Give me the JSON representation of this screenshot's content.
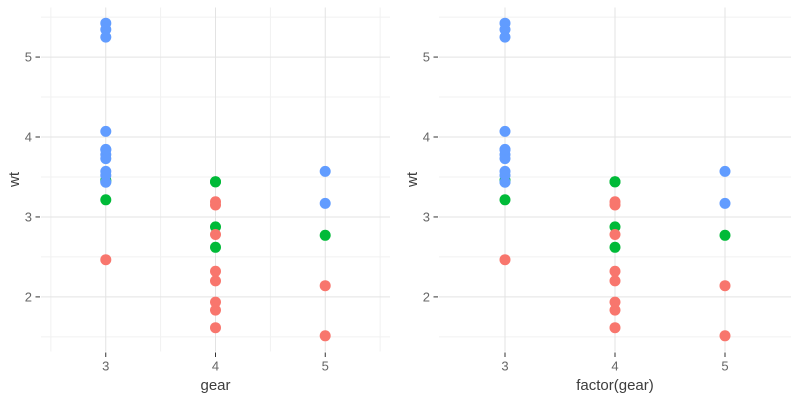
{
  "figure": {
    "background": "#FFFFFF",
    "grid_major_color": "#E3E3E3",
    "grid_minor_color": "#F1F1F1",
    "tick_color": "#333333",
    "tick_label_color": "#666666",
    "axis_title_color": "#3D3D3D",
    "point_colors_by_cyl": {
      "4": "#F8766D",
      "6": "#00BA38",
      "8": "#619CFF"
    }
  },
  "chart_data": [
    {
      "type": "scatter",
      "title": "",
      "xlabel": "gear",
      "ylabel": "wt",
      "legend": "none",
      "grid": true,
      "x_axis": {
        "scale": "continuous",
        "lim": [
          2.41,
          5.59
        ],
        "ticks": [
          {
            "pos": 3,
            "label": "3"
          },
          {
            "pos": 4,
            "label": "4"
          },
          {
            "pos": 5,
            "label": "5"
          }
        ],
        "minor": [
          2.5,
          3.5,
          4.5,
          5.5
        ]
      },
      "y_axis": {
        "lim": [
          1.317,
          5.62
        ],
        "ticks": [
          {
            "pos": 2,
            "label": "2"
          },
          {
            "pos": 3,
            "label": "3"
          },
          {
            "pos": 4,
            "label": "4"
          },
          {
            "pos": 5,
            "label": "5"
          }
        ],
        "minor": [
          1.5,
          2.5,
          3.5,
          4.5,
          5.5
        ]
      },
      "group_variable": "cyl",
      "colors": {
        "4": "#F8766D",
        "6": "#00BA38",
        "8": "#619CFF"
      },
      "points_format": [
        "gear",
        "wt",
        "cyl"
      ],
      "points": [
        [
          4,
          2.62,
          6
        ],
        [
          4,
          2.875,
          6
        ],
        [
          4,
          2.32,
          4
        ],
        [
          3,
          3.215,
          6
        ],
        [
          3,
          3.44,
          8
        ],
        [
          3,
          3.46,
          6
        ],
        [
          3,
          3.57,
          8
        ],
        [
          4,
          3.19,
          4
        ],
        [
          4,
          3.15,
          4
        ],
        [
          4,
          3.44,
          6
        ],
        [
          4,
          3.44,
          6
        ],
        [
          3,
          4.07,
          8
        ],
        [
          3,
          3.73,
          8
        ],
        [
          3,
          3.78,
          8
        ],
        [
          3,
          5.25,
          8
        ],
        [
          3,
          5.424,
          8
        ],
        [
          3,
          5.345,
          8
        ],
        [
          4,
          2.2,
          4
        ],
        [
          4,
          1.615,
          4
        ],
        [
          4,
          1.835,
          4
        ],
        [
          3,
          2.465,
          4
        ],
        [
          3,
          3.52,
          8
        ],
        [
          3,
          3.435,
          8
        ],
        [
          3,
          3.84,
          8
        ],
        [
          3,
          3.845,
          8
        ],
        [
          4,
          1.935,
          4
        ],
        [
          5,
          2.14,
          4
        ],
        [
          5,
          1.513,
          4
        ],
        [
          5,
          3.17,
          8
        ],
        [
          5,
          2.77,
          6
        ],
        [
          5,
          3.57,
          8
        ],
        [
          4,
          2.78,
          4
        ]
      ]
    },
    {
      "type": "scatter",
      "title": "",
      "xlabel": "factor(gear)",
      "ylabel": "wt",
      "legend": "none",
      "grid": true,
      "x_axis": {
        "scale": "discrete",
        "lim": [
          0.4,
          3.6
        ],
        "level_pos": {
          "3": 1,
          "4": 2,
          "5": 3
        },
        "ticks": [
          {
            "pos": 1,
            "label": "3"
          },
          {
            "pos": 2,
            "label": "4"
          },
          {
            "pos": 3,
            "label": "5"
          }
        ],
        "minor": []
      },
      "y_axis": {
        "lim": [
          1.317,
          5.62
        ],
        "ticks": [
          {
            "pos": 2,
            "label": "2"
          },
          {
            "pos": 3,
            "label": "3"
          },
          {
            "pos": 4,
            "label": "4"
          },
          {
            "pos": 5,
            "label": "5"
          }
        ],
        "minor": [
          1.5,
          2.5,
          3.5,
          4.5,
          5.5
        ]
      },
      "group_variable": "cyl",
      "colors": {
        "4": "#F8766D",
        "6": "#00BA38",
        "8": "#619CFF"
      },
      "points_format": [
        "gear",
        "wt",
        "cyl"
      ],
      "points": [
        [
          4,
          2.62,
          6
        ],
        [
          4,
          2.875,
          6
        ],
        [
          4,
          2.32,
          4
        ],
        [
          3,
          3.215,
          6
        ],
        [
          3,
          3.44,
          8
        ],
        [
          3,
          3.46,
          6
        ],
        [
          3,
          3.57,
          8
        ],
        [
          4,
          3.19,
          4
        ],
        [
          4,
          3.15,
          4
        ],
        [
          4,
          3.44,
          6
        ],
        [
          4,
          3.44,
          6
        ],
        [
          3,
          4.07,
          8
        ],
        [
          3,
          3.73,
          8
        ],
        [
          3,
          3.78,
          8
        ],
        [
          3,
          5.25,
          8
        ],
        [
          3,
          5.424,
          8
        ],
        [
          3,
          5.345,
          8
        ],
        [
          4,
          2.2,
          4
        ],
        [
          4,
          1.615,
          4
        ],
        [
          4,
          1.835,
          4
        ],
        [
          3,
          2.465,
          4
        ],
        [
          3,
          3.52,
          8
        ],
        [
          3,
          3.435,
          8
        ],
        [
          3,
          3.84,
          8
        ],
        [
          3,
          3.845,
          8
        ],
        [
          4,
          1.935,
          4
        ],
        [
          5,
          2.14,
          4
        ],
        [
          5,
          1.513,
          4
        ],
        [
          5,
          3.17,
          8
        ],
        [
          5,
          2.77,
          6
        ],
        [
          5,
          3.57,
          8
        ],
        [
          4,
          2.78,
          4
        ]
      ]
    }
  ]
}
